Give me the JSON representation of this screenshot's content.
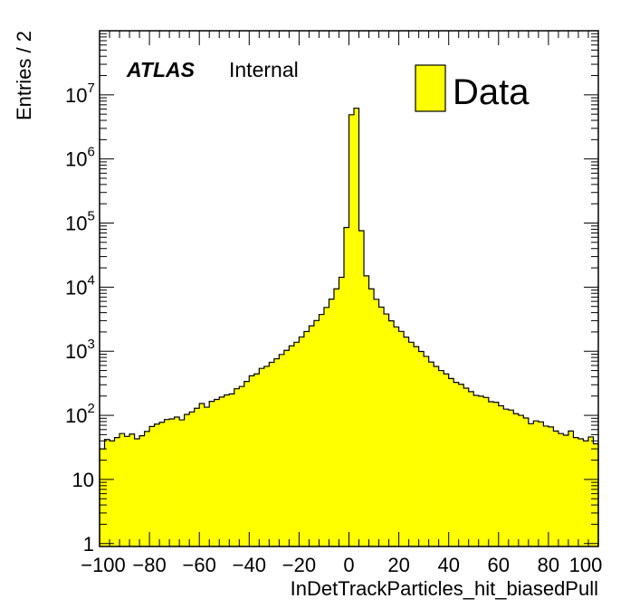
{
  "chart_data": {
    "type": "bar",
    "style": "histogram",
    "annotation": {
      "brand": "ATLAS",
      "label": "Internal"
    },
    "xlabel": "InDetTrackParticles_hit_biasedPull",
    "ylabel": "Entries / 2",
    "xlim": [
      -100,
      100
    ],
    "ylim": [
      0.9,
      100000000
    ],
    "ylog": true,
    "bin_width": 2,
    "fill_color": "#ffff00",
    "line_color": "#000000",
    "grid": false,
    "legend": {
      "position": "top-right",
      "entries": [
        {
          "name": "Data",
          "color": "#ffff00"
        }
      ]
    },
    "x_ticks": [
      "−100",
      "−80",
      "−60",
      "−40",
      "−20",
      "0",
      "20",
      "40",
      "60",
      "80",
      "100"
    ],
    "y_ticks": [
      {
        "mantissa": "1",
        "exp": ""
      },
      {
        "mantissa": "10",
        "exp": ""
      },
      {
        "mantissa": "10",
        "exp": "2"
      },
      {
        "mantissa": "10",
        "exp": "3"
      },
      {
        "mantissa": "10",
        "exp": "4"
      },
      {
        "mantissa": "10",
        "exp": "5"
      },
      {
        "mantissa": "10",
        "exp": "6"
      },
      {
        "mantissa": "10",
        "exp": "7"
      }
    ],
    "series": [
      {
        "name": "Data",
        "bin_edges_start": -100,
        "values": [
          30,
          42,
          40,
          45,
          52,
          47,
          51,
          43,
          48,
          56,
          67,
          73,
          78,
          86,
          88,
          94,
          85,
          103,
          113,
          129,
          153,
          134,
          165,
          177,
          193,
          208,
          216,
          260,
          282,
          338,
          414,
          443,
          540,
          581,
          671,
          763,
          890,
          1033,
          1215,
          1380,
          1670,
          2031,
          2490,
          3010,
          3750,
          4820,
          6500,
          9420,
          14230,
          85000,
          4900000,
          6200000,
          76000,
          15000,
          9400,
          6460,
          4880,
          3810,
          2980,
          2400,
          2040,
          1660,
          1380,
          1180,
          990,
          830,
          680,
          580,
          500,
          443,
          375,
          327,
          305,
          266,
          234,
          205,
          199,
          190,
          163,
          160,
          141,
          125,
          121,
          106,
          100,
          91,
          74,
          82,
          79,
          68,
          66,
          57,
          52,
          49,
          57,
          45,
          43,
          40,
          46,
          36
        ]
      }
    ]
  }
}
